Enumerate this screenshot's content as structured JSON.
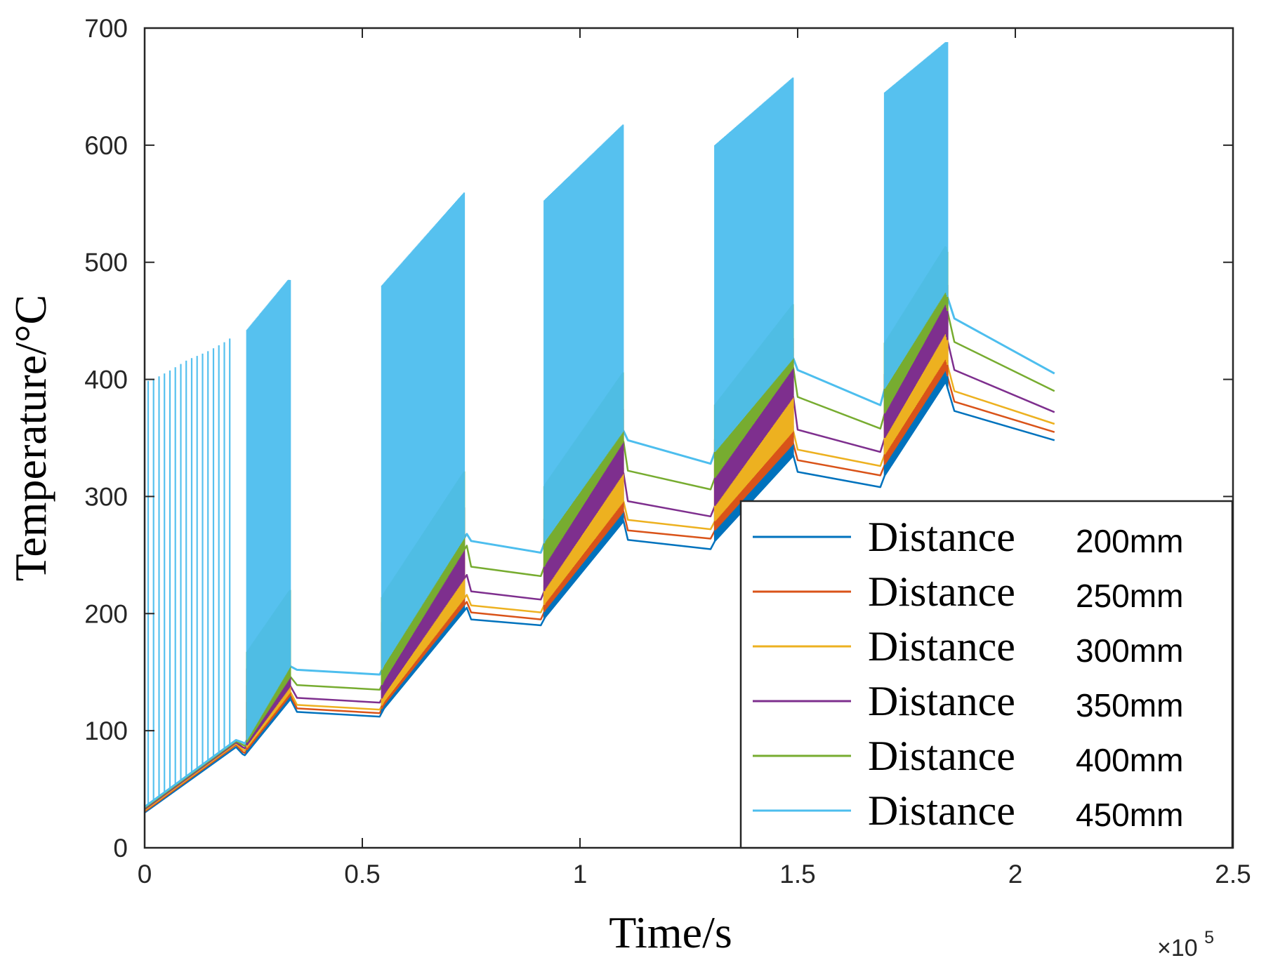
{
  "chart_data": {
    "type": "line",
    "title": "",
    "xlabel": "Time/s",
    "ylabel": "Temperature/°C",
    "x_multiplier": "×10",
    "x_multiplier_exp": "5",
    "xlim": [
      0,
      2.5
    ],
    "ylim": [
      0,
      700
    ],
    "x_units": "x 10^5 s",
    "xticks": [
      0,
      0.5,
      1,
      1.5,
      2,
      2.5
    ],
    "xtick_labels": [
      "0",
      "0.5",
      "1",
      "1.5",
      "2",
      "2.5"
    ],
    "yticks": [
      0,
      100,
      200,
      300,
      400,
      500,
      600,
      700
    ],
    "ytick_labels": [
      "0",
      "100",
      "200",
      "300",
      "400",
      "500",
      "600",
      "700"
    ],
    "grid": false,
    "legend_position": "bottom-right",
    "series": [
      {
        "name": "Distance 200mm",
        "legend_word": "Distance",
        "legend_value": "200mm",
        "color": "#0072BD",
        "x": [
          0,
          0.21,
          0.225,
          0.23,
          0.335,
          0.35,
          0.54,
          0.55,
          0.74,
          0.75,
          0.91,
          0.92,
          1.1,
          1.11,
          1.3,
          1.31,
          1.49,
          1.5,
          1.69,
          1.7,
          1.84,
          1.86,
          2.09
        ],
        "values": [
          30,
          86,
          80,
          79,
          127,
          116,
          112,
          119,
          205,
          195,
          190,
          197,
          279,
          263,
          255,
          262,
          335,
          321,
          308,
          318,
          398,
          373,
          348
        ]
      },
      {
        "name": "Distance 250mm",
        "legend_word": "Distance",
        "legend_value": "250mm",
        "color": "#D95319",
        "x": [
          0,
          0.21,
          0.225,
          0.23,
          0.335,
          0.35,
          0.54,
          0.55,
          0.74,
          0.75,
          0.91,
          0.92,
          1.1,
          1.11,
          1.3,
          1.31,
          1.49,
          1.5,
          1.69,
          1.7,
          1.84,
          1.86,
          2.09
        ],
        "values": [
          31,
          88,
          82,
          81,
          130,
          119,
          115,
          122,
          210,
          201,
          195,
          203,
          287,
          271,
          264,
          271,
          345,
          331,
          318,
          327,
          408,
          381,
          355
        ]
      },
      {
        "name": "Distance 300mm",
        "legend_word": "Distance",
        "legend_value": "300mm",
        "color": "#EDB120",
        "x": [
          0,
          0.21,
          0.225,
          0.23,
          0.335,
          0.35,
          0.54,
          0.55,
          0.74,
          0.75,
          0.91,
          0.92,
          1.1,
          1.11,
          1.3,
          1.31,
          1.49,
          1.5,
          1.69,
          1.7,
          1.84,
          1.86,
          2.09
        ],
        "values": [
          32,
          89,
          84,
          83,
          133,
          122,
          118,
          125,
          216,
          207,
          201,
          209,
          296,
          280,
          272,
          279,
          356,
          340,
          326,
          336,
          418,
          390,
          362
        ]
      },
      {
        "name": "Distance 350mm",
        "legend_word": "Distance",
        "legend_value": "350mm",
        "color": "#7E2F8E",
        "x": [
          0,
          0.21,
          0.225,
          0.23,
          0.335,
          0.35,
          0.54,
          0.55,
          0.74,
          0.75,
          0.91,
          0.92,
          1.1,
          1.11,
          1.3,
          1.31,
          1.49,
          1.5,
          1.69,
          1.7,
          1.84,
          1.86,
          2.09
        ],
        "values": [
          33,
          90,
          86,
          85,
          138,
          128,
          124,
          131,
          233,
          219,
          212,
          221,
          320,
          296,
          283,
          292,
          385,
          357,
          338,
          350,
          440,
          408,
          372
        ]
      },
      {
        "name": "Distance 400mm",
        "legend_word": "Distance",
        "legend_value": "400mm",
        "color": "#77AC30",
        "x": [
          0,
          0.21,
          0.225,
          0.23,
          0.335,
          0.35,
          0.54,
          0.55,
          0.74,
          0.75,
          0.91,
          0.92,
          1.1,
          1.11,
          1.3,
          1.31,
          1.49,
          1.5,
          1.69,
          1.7,
          1.84,
          1.86,
          2.09
        ],
        "values": [
          34,
          91,
          88,
          87,
          146,
          139,
          135,
          143,
          258,
          240,
          232,
          242,
          347,
          322,
          306,
          316,
          410,
          385,
          358,
          371,
          465,
          432,
          390
        ]
      },
      {
        "name": "Distance 450mm",
        "legend_word": "Distance",
        "legend_value": "450mm",
        "color": "#4DBEEE",
        "x": [
          0,
          0.21,
          0.225,
          0.23,
          0.335,
          0.35,
          0.54,
          0.55,
          0.74,
          0.75,
          0.91,
          0.92,
          1.1,
          1.11,
          1.3,
          1.31,
          1.49,
          1.5,
          1.69,
          1.7,
          1.84,
          1.86,
          2.09
        ],
        "values": [
          35,
          92,
          90,
          89,
          155,
          152,
          148,
          156,
          268,
          262,
          252,
          262,
          356,
          348,
          328,
          338,
          418,
          408,
          378,
          392,
          475,
          452,
          405
        ],
        "spike_envelope": {
          "note": "peaks of the rapid spike region for the 450mm series",
          "x": [
            0,
            0.02,
            0.06,
            0.1,
            0.14,
            0.18,
            0.2,
            0.22,
            0.23,
            0.33,
            0.54,
            0.735,
            0.91,
            1.1,
            1.31,
            1.49,
            1.695,
            1.7,
            1.84
          ],
          "values": [
            398,
            400,
            408,
            417,
            423,
            431,
            436,
            430,
            440,
            485,
            478,
            560,
            550,
            618,
            600,
            658,
            630,
            645,
            688
          ]
        }
      }
    ]
  }
}
